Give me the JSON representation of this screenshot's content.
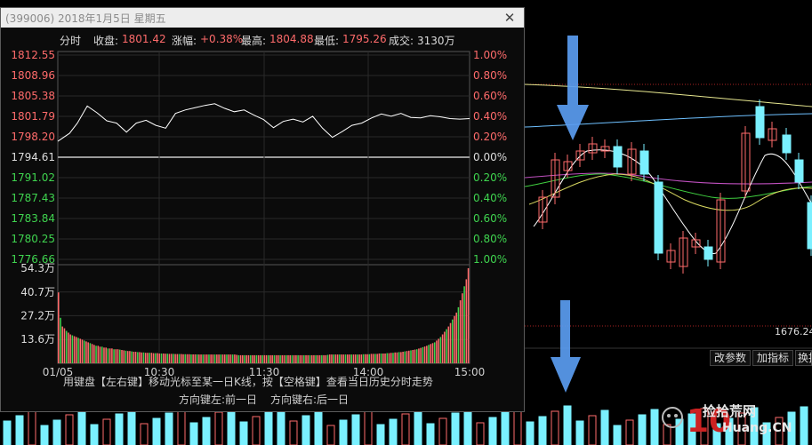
{
  "window": {
    "title": "(399006) 2018年1月5日 星期五",
    "close": "✕"
  },
  "info_bar": {
    "mode": "分时",
    "close_label": "收盘:",
    "close_value": "1801.42",
    "change_label": "涨幅:",
    "change_value": "+0.38%",
    "high_label": "最高:",
    "high_value": "1804.88",
    "low_label": "最低:",
    "low_value": "1795.26",
    "volume_label": "成交:",
    "volume_value": "3130万"
  },
  "colors": {
    "up": "#ff6b6b",
    "down": "#3fd44f",
    "neutral": "#dcdcdc",
    "price_line": "#ffffff",
    "accent": "#5aa0ff"
  },
  "chart_data": {
    "type": "line",
    "prev_close": 1794.61,
    "price_ticks": [
      1812.55,
      1808.96,
      1805.38,
      1801.79,
      1798.2,
      1794.61,
      1791.02,
      1787.43,
      1783.84,
      1780.25,
      1776.66
    ],
    "price_tick_labels": [
      "1812.55",
      "1808.96",
      "1805.38",
      "1801.79",
      "1798.20",
      "1794.61",
      "1791.02",
      "1787.43",
      "1783.84",
      "1780.25",
      "1776.66"
    ],
    "pct_tick_labels": [
      "1.00%",
      "0.80%",
      "0.60%",
      "0.40%",
      "0.20%",
      "0.00%",
      "0.20%",
      "0.40%",
      "0.60%",
      "0.80%",
      "1.00%"
    ],
    "volume_ticks": [
      "54.3万",
      "40.7万",
      "27.2万",
      "13.6万"
    ],
    "volume_tick_values": [
      54.3,
      40.7,
      27.2,
      13.6
    ],
    "time_labels": [
      "01/05",
      "10:30",
      "11:30",
      "14:00",
      "15:00"
    ],
    "ylim": [
      1776.66,
      1812.55
    ],
    "volume_max": 54.3,
    "price_series": [
      [
        0,
        1797.4
      ],
      [
        6,
        1798.8
      ],
      [
        10,
        1800.6
      ],
      [
        15,
        1803.6
      ],
      [
        20,
        1802.4
      ],
      [
        25,
        1801.0
      ],
      [
        30,
        1800.6
      ],
      [
        35,
        1799.0
      ],
      [
        40,
        1800.6
      ],
      [
        45,
        1801.1
      ],
      [
        50,
        1800.2
      ],
      [
        55,
        1799.7
      ],
      [
        60,
        1802.3
      ],
      [
        65,
        1802.9
      ],
      [
        70,
        1803.3
      ],
      [
        75,
        1803.7
      ],
      [
        80,
        1804.0
      ],
      [
        85,
        1803.2
      ],
      [
        90,
        1802.6
      ],
      [
        95,
        1802.9
      ],
      [
        100,
        1802.0
      ],
      [
        105,
        1801.2
      ],
      [
        110,
        1799.8
      ],
      [
        115,
        1800.9
      ],
      [
        120,
        1801.3
      ],
      [
        125,
        1800.8
      ],
      [
        130,
        1801.8
      ],
      [
        135,
        1799.7
      ],
      [
        140,
        1798.1
      ],
      [
        145,
        1799.1
      ],
      [
        150,
        1800.2
      ],
      [
        155,
        1800.6
      ],
      [
        160,
        1801.5
      ],
      [
        165,
        1802.2
      ],
      [
        170,
        1801.8
      ],
      [
        175,
        1802.3
      ],
      [
        180,
        1801.6
      ],
      [
        185,
        1801.5
      ],
      [
        190,
        1801.9
      ],
      [
        195,
        1801.7
      ],
      [
        200,
        1801.4
      ],
      [
        205,
        1801.3
      ],
      [
        210,
        1801.4
      ]
    ],
    "volume_series": [
      40.5,
      26.0,
      21.0,
      20.0,
      18.5,
      17.5,
      16.5,
      16.0,
      15.5,
      15.0,
      14.5,
      14.0,
      13.5,
      13.0,
      12.5,
      12.0,
      11.5,
      11.0,
      10.5,
      10.0,
      10.0,
      9.5,
      9.5,
      9.0,
      9.0,
      8.5,
      8.5,
      8.5,
      8.0,
      8.0,
      8.0,
      7.8,
      7.6,
      7.4,
      7.2,
      7.0,
      7.0,
      6.8,
      6.6,
      6.6,
      6.4,
      6.4,
      6.2,
      6.2,
      6.0,
      6.0,
      6.0,
      6.0,
      5.8,
      5.8,
      5.8,
      5.6,
      5.6,
      5.6,
      5.5,
      5.5,
      5.4,
      5.4,
      5.4,
      5.3,
      5.3,
      5.3,
      5.3,
      5.2,
      5.2,
      5.2,
      5.2,
      5.1,
      5.1,
      5.1,
      5.1,
      5.0,
      5.0,
      5.0,
      5.0,
      5.0,
      5.0,
      5.0,
      5.0,
      5.0,
      5.0,
      5.0,
      5.0,
      5.0,
      5.0,
      5.0,
      5.0,
      5.0,
      5.0,
      5.0,
      4.8,
      4.6,
      4.6,
      4.6,
      4.6,
      4.6,
      4.6,
      4.6,
      4.6,
      4.6,
      4.6,
      4.6,
      4.6,
      4.6,
      4.6,
      4.6,
      4.6,
      4.6,
      4.6,
      4.6,
      4.6,
      4.6,
      4.6,
      4.6,
      4.6,
      4.6,
      4.6,
      4.6,
      4.6,
      4.6,
      4.6,
      4.6,
      4.6,
      4.6,
      4.6,
      4.6,
      4.6,
      4.6,
      4.6,
      4.6,
      4.6,
      4.6,
      4.6,
      4.6,
      4.6,
      4.6,
      4.8,
      5.0,
      5.0,
      5.0,
      5.0,
      5.0,
      5.0,
      5.0,
      5.0,
      5.0,
      5.0,
      5.0,
      5.0,
      5.0,
      5.0,
      5.0,
      5.0,
      5.0,
      5.2,
      5.2,
      5.2,
      5.2,
      5.4,
      5.4,
      5.4,
      5.4,
      5.6,
      5.6,
      5.6,
      5.6,
      5.8,
      5.8,
      6.0,
      6.0,
      6.2,
      6.2,
      6.4,
      6.4,
      6.6,
      6.8,
      7.0,
      7.2,
      7.4,
      7.6,
      7.8,
      8.0,
      8.4,
      8.8,
      9.2,
      9.6,
      10.0,
      10.5,
      11.0,
      11.5,
      12.0,
      13.0,
      14.0,
      15.0,
      16.5,
      18.0,
      19.5,
      21.0,
      23.0,
      25.0,
      27.0,
      29.0,
      32.0,
      36.0,
      40.0,
      44.0,
      48.0,
      54.3
    ]
  },
  "hint": {
    "line1": "用键盘【左右键】移动光标至某一日K线，按【空格键】查看当日历史分时走势",
    "line2_left": "方向键左:前一日",
    "line2_right": "方向键右:后一日"
  },
  "toolbar": {
    "modify_params": "改参数",
    "add_indicator": "加指标",
    "switch": "换指"
  },
  "background": {
    "price_label": "1676.24"
  },
  "watermark": {
    "text": "捡拾荒网",
    "url": "Huang.CN"
  }
}
